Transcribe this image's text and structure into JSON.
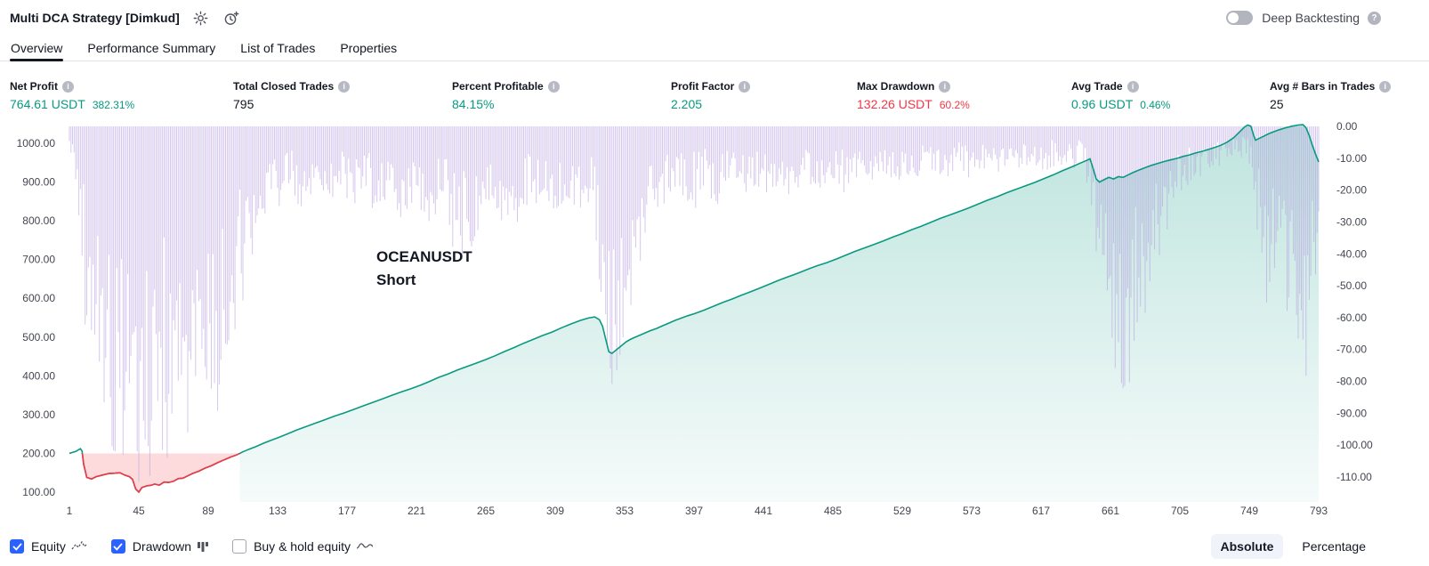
{
  "header": {
    "title": "Multi DCA Strategy [Dimkud]",
    "deep_backtesting": {
      "label": "Deep Backtesting",
      "enabled": false
    }
  },
  "tabs": [
    {
      "label": "Overview",
      "active": true
    },
    {
      "label": "Performance Summary",
      "active": false
    },
    {
      "label": "List of Trades",
      "active": false
    },
    {
      "label": "Properties",
      "active": false
    }
  ],
  "stats": [
    {
      "label": "Net Profit",
      "value": "764.61 USDT",
      "secondary": "382.31%",
      "tone": "positive"
    },
    {
      "label": "Total Closed Trades",
      "value": "795",
      "secondary": "",
      "tone": "neutral"
    },
    {
      "label": "Percent Profitable",
      "value": "84.15%",
      "secondary": "",
      "tone": "positive"
    },
    {
      "label": "Profit Factor",
      "value": "2.205",
      "secondary": "",
      "tone": "positive"
    },
    {
      "label": "Max Drawdown",
      "value": "132.26 USDT",
      "secondary": "60.2%",
      "tone": "negative"
    },
    {
      "label": "Avg Trade",
      "value": "0.96 USDT",
      "secondary": "0.46%",
      "tone": "positive"
    },
    {
      "label": "Avg # Bars in Trades",
      "value": "25",
      "secondary": "",
      "tone": "neutral"
    }
  ],
  "colors": {
    "positive": "#089981",
    "negative": "#f23645",
    "checkbox_accent": "#2962ff",
    "drawdown_purple": "#b49ae0"
  },
  "chart_data": {
    "type": "line+bar",
    "annotation": {
      "line1": "OCEANUSDT",
      "line2": "Short"
    },
    "baseline": 200,
    "equity_axis": {
      "side": "left",
      "ticks": [
        "1000.00",
        "900.00",
        "800.00",
        "700.00",
        "600.00",
        "500.00",
        "400.00",
        "300.00",
        "200.00",
        "100.00"
      ]
    },
    "drawdown_axis": {
      "side": "right",
      "ticks": [
        "0.00",
        "-10.00",
        "-20.00",
        "-30.00",
        "-40.00",
        "-50.00",
        "-60.00",
        "-70.00",
        "-80.00",
        "-90.00",
        "-100.00",
        "-110.00"
      ]
    },
    "x_axis": {
      "min": 1,
      "max": 793,
      "ticks": [
        "1",
        "45",
        "89",
        "133",
        "177",
        "221",
        "265",
        "309",
        "353",
        "397",
        "441",
        "485",
        "529",
        "573",
        "617",
        "661",
        "705",
        "749",
        "793"
      ]
    },
    "equity_series": {
      "name": "Equity",
      "color": "#089981",
      "below_baseline_color": "#f23645",
      "points": [
        [
          1,
          200
        ],
        [
          5,
          205
        ],
        [
          8,
          212
        ],
        [
          9,
          206
        ],
        [
          10,
          172
        ],
        [
          12,
          138
        ],
        [
          15,
          134
        ],
        [
          18,
          140
        ],
        [
          22,
          144
        ],
        [
          26,
          148
        ],
        [
          30,
          149
        ],
        [
          33,
          150
        ],
        [
          36,
          144
        ],
        [
          39,
          140
        ],
        [
          41,
          133
        ],
        [
          43,
          108
        ],
        [
          45,
          100
        ],
        [
          47,
          112
        ],
        [
          50,
          116
        ],
        [
          53,
          118
        ],
        [
          55,
          121
        ],
        [
          58,
          118
        ],
        [
          61,
          126
        ],
        [
          64,
          125
        ],
        [
          67,
          128
        ],
        [
          70,
          135
        ],
        [
          73,
          136
        ],
        [
          76,
          142
        ],
        [
          79,
          148
        ],
        [
          83,
          154
        ],
        [
          87,
          162
        ],
        [
          91,
          168
        ],
        [
          95,
          176
        ],
        [
          99,
          183
        ],
        [
          103,
          190
        ],
        [
          107,
          196
        ],
        [
          111,
          204
        ],
        [
          115,
          211
        ],
        [
          119,
          217
        ],
        [
          124,
          226
        ],
        [
          129,
          234
        ],
        [
          133,
          240
        ],
        [
          139,
          250
        ],
        [
          145,
          260
        ],
        [
          151,
          269
        ],
        [
          157,
          278
        ],
        [
          163,
          287
        ],
        [
          169,
          296
        ],
        [
          175,
          304
        ],
        [
          181,
          313
        ],
        [
          187,
          322
        ],
        [
          193,
          331
        ],
        [
          199,
          340
        ],
        [
          205,
          349
        ],
        [
          211,
          358
        ],
        [
          217,
          366
        ],
        [
          223,
          375
        ],
        [
          229,
          385
        ],
        [
          235,
          396
        ],
        [
          241,
          405
        ],
        [
          247,
          415
        ],
        [
          253,
          424
        ],
        [
          259,
          433
        ],
        [
          265,
          442
        ],
        [
          271,
          452
        ],
        [
          277,
          463
        ],
        [
          283,
          473
        ],
        [
          289,
          484
        ],
        [
          295,
          494
        ],
        [
          301,
          504
        ],
        [
          307,
          513
        ],
        [
          313,
          524
        ],
        [
          319,
          534
        ],
        [
          325,
          543
        ],
        [
          330,
          549
        ],
        [
          334,
          552
        ],
        [
          337,
          545
        ],
        [
          339,
          528
        ],
        [
          341,
          495
        ],
        [
          343,
          462
        ],
        [
          345,
          458
        ],
        [
          348,
          468
        ],
        [
          351,
          478
        ],
        [
          354,
          488
        ],
        [
          357,
          495
        ],
        [
          361,
          502
        ],
        [
          365,
          509
        ],
        [
          369,
          516
        ],
        [
          373,
          522
        ],
        [
          377,
          529
        ],
        [
          381,
          536
        ],
        [
          385,
          543
        ],
        [
          389,
          549
        ],
        [
          393,
          555
        ],
        [
          397,
          560
        ],
        [
          403,
          569
        ],
        [
          409,
          579
        ],
        [
          415,
          589
        ],
        [
          421,
          598
        ],
        [
          427,
          608
        ],
        [
          433,
          617
        ],
        [
          439,
          627
        ],
        [
          445,
          637
        ],
        [
          451,
          647
        ],
        [
          457,
          656
        ],
        [
          463,
          665
        ],
        [
          469,
          675
        ],
        [
          475,
          684
        ],
        [
          481,
          692
        ],
        [
          487,
          701
        ],
        [
          493,
          711
        ],
        [
          499,
          721
        ],
        [
          505,
          730
        ],
        [
          511,
          739
        ],
        [
          517,
          748
        ],
        [
          523,
          758
        ],
        [
          529,
          767
        ],
        [
          535,
          777
        ],
        [
          541,
          786
        ],
        [
          547,
          796
        ],
        [
          553,
          806
        ],
        [
          559,
          815
        ],
        [
          565,
          824
        ],
        [
          571,
          833
        ],
        [
          577,
          843
        ],
        [
          583,
          853
        ],
        [
          589,
          862
        ],
        [
          595,
          872
        ],
        [
          601,
          881
        ],
        [
          607,
          890
        ],
        [
          613,
          899
        ],
        [
          619,
          909
        ],
        [
          625,
          919
        ],
        [
          631,
          930
        ],
        [
          637,
          940
        ],
        [
          642,
          949
        ],
        [
          646,
          956
        ],
        [
          648,
          960
        ],
        [
          650,
          935
        ],
        [
          652,
          908
        ],
        [
          654,
          900
        ],
        [
          657,
          906
        ],
        [
          660,
          912
        ],
        [
          663,
          908
        ],
        [
          666,
          914
        ],
        [
          669,
          912
        ],
        [
          672,
          918
        ],
        [
          675,
          924
        ],
        [
          679,
          931
        ],
        [
          683,
          937
        ],
        [
          687,
          943
        ],
        [
          691,
          948
        ],
        [
          695,
          953
        ],
        [
          699,
          957
        ],
        [
          703,
          961
        ],
        [
          707,
          966
        ],
        [
          711,
          970
        ],
        [
          715,
          975
        ],
        [
          719,
          979
        ],
        [
          723,
          984
        ],
        [
          727,
          989
        ],
        [
          731,
          995
        ],
        [
          735,
          1003
        ],
        [
          739,
          1014
        ],
        [
          743,
          1030
        ],
        [
          746,
          1042
        ],
        [
          748,
          1047
        ],
        [
          750,
          1044
        ],
        [
          752,
          1018
        ],
        [
          753,
          1008
        ],
        [
          755,
          1012
        ],
        [
          758,
          1018
        ],
        [
          761,
          1024
        ],
        [
          764,
          1029
        ],
        [
          768,
          1035
        ],
        [
          772,
          1040
        ],
        [
          776,
          1044
        ],
        [
          780,
          1047
        ],
        [
          783,
          1048
        ],
        [
          785,
          1040
        ],
        [
          787,
          1020
        ],
        [
          789,
          995
        ],
        [
          791,
          972
        ],
        [
          793,
          952
        ]
      ]
    },
    "drawdown_series": {
      "name": "Drawdown",
      "color": "#b49ae0",
      "envelope": [
        [
          1,
          6
        ],
        [
          5,
          18
        ],
        [
          8,
          40
        ],
        [
          12,
          78
        ],
        [
          16,
          92
        ],
        [
          20,
          100
        ],
        [
          26,
          104
        ],
        [
          32,
          106
        ],
        [
          38,
          108
        ],
        [
          44,
          112
        ],
        [
          50,
          112
        ],
        [
          56,
          110
        ],
        [
          62,
          110
        ],
        [
          68,
          108
        ],
        [
          74,
          104
        ],
        [
          80,
          98
        ],
        [
          86,
          92
        ],
        [
          90,
          86
        ],
        [
          94,
          92
        ],
        [
          98,
          84
        ],
        [
          102,
          74
        ],
        [
          106,
          66
        ],
        [
          110,
          58
        ],
        [
          114,
          50
        ],
        [
          118,
          44
        ],
        [
          122,
          38
        ],
        [
          127,
          32
        ],
        [
          133,
          26
        ],
        [
          140,
          22
        ],
        [
          148,
          26
        ],
        [
          156,
          20
        ],
        [
          164,
          26
        ],
        [
          172,
          21
        ],
        [
          180,
          27
        ],
        [
          188,
          22
        ],
        [
          196,
          28
        ],
        [
          204,
          23
        ],
        [
          212,
          30
        ],
        [
          220,
          25
        ],
        [
          228,
          33
        ],
        [
          236,
          27
        ],
        [
          244,
          40
        ],
        [
          250,
          46
        ],
        [
          256,
          38
        ],
        [
          262,
          30
        ],
        [
          268,
          27
        ],
        [
          274,
          32
        ],
        [
          280,
          27
        ],
        [
          286,
          31
        ],
        [
          292,
          25
        ],
        [
          298,
          29
        ],
        [
          304,
          24
        ],
        [
          310,
          27
        ],
        [
          316,
          22
        ],
        [
          322,
          26
        ],
        [
          328,
          28
        ],
        [
          333,
          32
        ],
        [
          337,
          58
        ],
        [
          341,
          76
        ],
        [
          345,
          83
        ],
        [
          349,
          78
        ],
        [
          353,
          70
        ],
        [
          357,
          60
        ],
        [
          361,
          50
        ],
        [
          365,
          41
        ],
        [
          370,
          34
        ],
        [
          375,
          29
        ],
        [
          380,
          25
        ],
        [
          386,
          29
        ],
        [
          392,
          23
        ],
        [
          398,
          27
        ],
        [
          405,
          21
        ],
        [
          412,
          25
        ],
        [
          420,
          19
        ],
        [
          428,
          23
        ],
        [
          436,
          19
        ],
        [
          444,
          25
        ],
        [
          452,
          19
        ],
        [
          460,
          23
        ],
        [
          468,
          17
        ],
        [
          476,
          21
        ],
        [
          484,
          17
        ],
        [
          492,
          21
        ],
        [
          500,
          16
        ],
        [
          508,
          19
        ],
        [
          516,
          15
        ],
        [
          524,
          19
        ],
        [
          532,
          15
        ],
        [
          540,
          18
        ],
        [
          548,
          14
        ],
        [
          556,
          17
        ],
        [
          564,
          13
        ],
        [
          572,
          17
        ],
        [
          580,
          13
        ],
        [
          588,
          16
        ],
        [
          596,
          13
        ],
        [
          604,
          15
        ],
        [
          612,
          12
        ],
        [
          620,
          15
        ],
        [
          628,
          12
        ],
        [
          636,
          14
        ],
        [
          642,
          13
        ],
        [
          646,
          18
        ],
        [
          650,
          38
        ],
        [
          654,
          55
        ],
        [
          658,
          66
        ],
        [
          662,
          75
        ],
        [
          666,
          82
        ],
        [
          670,
          86
        ],
        [
          674,
          80
        ],
        [
          678,
          72
        ],
        [
          682,
          62
        ],
        [
          686,
          52
        ],
        [
          690,
          44
        ],
        [
          694,
          37
        ],
        [
          698,
          31
        ],
        [
          702,
          27
        ],
        [
          706,
          23
        ],
        [
          710,
          19
        ],
        [
          715,
          17
        ],
        [
          720,
          15
        ],
        [
          726,
          13
        ],
        [
          732,
          12
        ],
        [
          738,
          11
        ],
        [
          744,
          10
        ],
        [
          748,
          9
        ],
        [
          751,
          20
        ],
        [
          754,
          34
        ],
        [
          757,
          46
        ],
        [
          760,
          56
        ],
        [
          763,
          50
        ],
        [
          766,
          43
        ],
        [
          769,
          52
        ],
        [
          772,
          62
        ],
        [
          775,
          71
        ],
        [
          778,
          79
        ],
        [
          781,
          84
        ],
        [
          784,
          86
        ],
        [
          787,
          74
        ],
        [
          790,
          55
        ],
        [
          793,
          34
        ]
      ]
    }
  },
  "legend": {
    "items": [
      {
        "label": "Equity",
        "checked": true,
        "icon": "equity-line-icon"
      },
      {
        "label": "Drawdown",
        "checked": true,
        "icon": "drawdown-bars-icon"
      },
      {
        "label": "Buy & hold equity",
        "checked": false,
        "icon": "buy-hold-line-icon"
      }
    ],
    "mode_buttons": [
      {
        "label": "Absolute",
        "active": true
      },
      {
        "label": "Percentage",
        "active": false
      }
    ]
  }
}
